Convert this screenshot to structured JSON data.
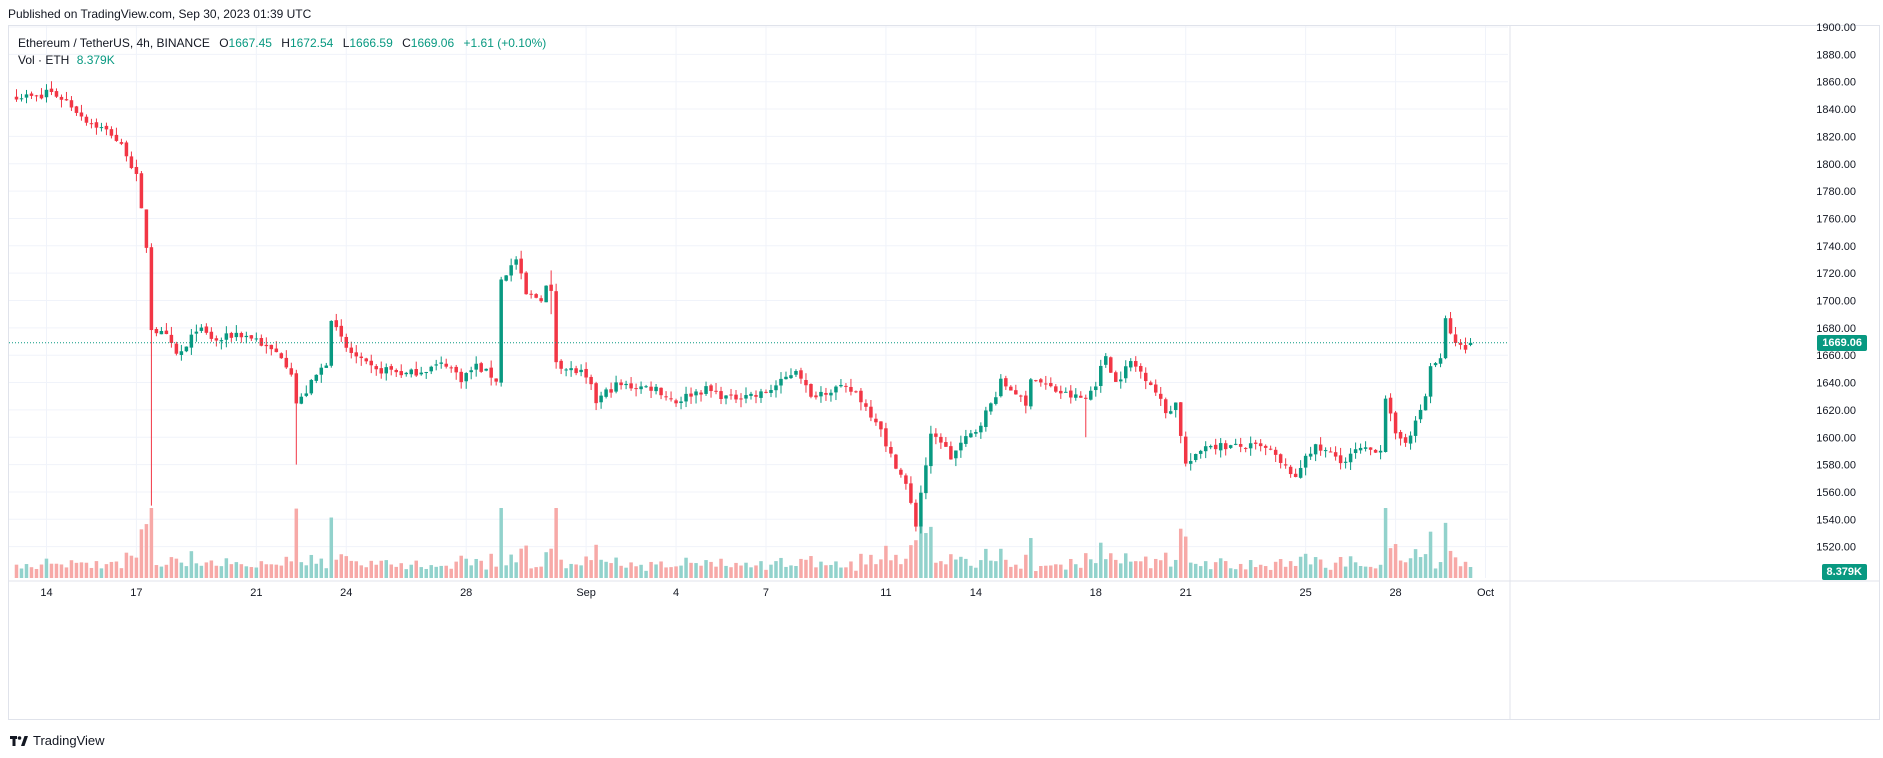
{
  "published": "Published on TradingView.com, Sep 30, 2023 01:39 UTC",
  "legend": {
    "symbol": "Ethereum / TetherUS, 4h, BINANCE",
    "open_label": "O",
    "open": "1667.45",
    "high_label": "H",
    "high": "1672.54",
    "low_label": "L",
    "low": "1666.59",
    "close_label": "C",
    "close": "1669.06",
    "change": "+1.61 (+0.10%)",
    "vol_label": "Vol · ETH",
    "vol_value": "8.379K"
  },
  "price_tag": "1669.06",
  "vol_tag": "8.379K",
  "brand": "TradingView",
  "colors": {
    "up": "#089981",
    "down": "#f23645",
    "vol_up": "#92d2cc",
    "vol_down": "#f7a9a7",
    "grid": "#f0f3fa"
  },
  "chart_data": {
    "type": "candlestick",
    "symbol": "Ethereum / TetherUS",
    "interval": "4h",
    "exchange": "BINANCE",
    "y_ticks": [
      1520,
      1540,
      1560,
      1580,
      1600,
      1620,
      1640,
      1660,
      1680,
      1700,
      1720,
      1740,
      1760,
      1780,
      1800,
      1820,
      1840,
      1860,
      1880,
      1900
    ],
    "y_tick_labels": [
      "1520.00",
      "1540.00",
      "1560.00",
      "1580.00",
      "1600.00",
      "1620.00",
      "1640.00",
      "1660.00",
      "1680.00",
      "1700.00",
      "1720.00",
      "1740.00",
      "1760.00",
      "1780.00",
      "1800.00",
      "1820.00",
      "1840.00",
      "1860.00",
      "1880.00",
      "1900.00"
    ],
    "ylim": [
      1500,
      1900
    ],
    "x_ticks": [
      {
        "label": "14",
        "x": 6.0
      },
      {
        "label": "17",
        "x": 24.0
      },
      {
        "label": "21",
        "x": 48.0
      },
      {
        "label": "24",
        "x": 66.0
      },
      {
        "label": "28",
        "x": 90.0
      },
      {
        "label": "Sep",
        "x": 114.0
      },
      {
        "label": "4",
        "x": 132.0
      },
      {
        "label": "7",
        "x": 150.0
      },
      {
        "label": "11",
        "x": 174.0
      },
      {
        "label": "14",
        "x": 192.0
      },
      {
        "label": "18",
        "x": 216.0
      },
      {
        "label": "21",
        "x": 234.0
      },
      {
        "label": "25",
        "x": 258.0
      },
      {
        "label": "28",
        "x": 276.0
      },
      {
        "label": "Oct",
        "x": 294.0
      }
    ],
    "xlim": [
      -1.5,
      298.5
    ],
    "last_price": 1669.06,
    "anchors": [
      [
        0,
        1850
      ],
      [
        5,
        1848
      ],
      [
        6,
        1854
      ],
      [
        10,
        1846
      ],
      [
        14,
        1832
      ],
      [
        19,
        1822
      ],
      [
        22,
        1808
      ],
      [
        24,
        1790
      ],
      [
        26,
        1740
      ],
      [
        27,
        1680
      ],
      [
        30,
        1673
      ],
      [
        32,
        1660
      ],
      [
        34,
        1665
      ],
      [
        36,
        1680
      ],
      [
        40,
        1670
      ],
      [
        44,
        1676
      ],
      [
        48,
        1672
      ],
      [
        50,
        1665
      ],
      [
        53,
        1660
      ],
      [
        55,
        1648
      ],
      [
        56,
        1625
      ],
      [
        57,
        1628
      ],
      [
        60,
        1645
      ],
      [
        62,
        1655
      ],
      [
        63,
        1688
      ],
      [
        64,
        1678
      ],
      [
        66,
        1665
      ],
      [
        69,
        1655
      ],
      [
        72,
        1648
      ],
      [
        74,
        1650
      ],
      [
        78,
        1646
      ],
      [
        82,
        1650
      ],
      [
        86,
        1654
      ],
      [
        89,
        1643
      ],
      [
        92,
        1652
      ],
      [
        95,
        1645
      ],
      [
        96,
        1642
      ],
      [
        97,
        1715
      ],
      [
        100,
        1730
      ],
      [
        102,
        1704
      ],
      [
        105,
        1702
      ],
      [
        106,
        1710
      ],
      [
        107,
        1705
      ],
      [
        108,
        1656
      ],
      [
        110,
        1650
      ],
      [
        113,
        1647
      ],
      [
        115,
        1636
      ],
      [
        116,
        1626
      ],
      [
        118,
        1633
      ],
      [
        120,
        1638
      ],
      [
        124,
        1637
      ],
      [
        128,
        1636
      ],
      [
        130,
        1630
      ],
      [
        132,
        1626
      ],
      [
        135,
        1632
      ],
      [
        138,
        1635
      ],
      [
        143,
        1628
      ],
      [
        146,
        1632
      ],
      [
        148,
        1630
      ],
      [
        150,
        1633
      ],
      [
        153,
        1640
      ],
      [
        156,
        1650
      ],
      [
        157,
        1645
      ],
      [
        159,
        1628
      ],
      [
        160,
        1632
      ],
      [
        164,
        1636
      ],
      [
        168,
        1633
      ],
      [
        170,
        1622
      ],
      [
        173,
        1608
      ],
      [
        174,
        1592
      ],
      [
        176,
        1580
      ],
      [
        178,
        1565
      ],
      [
        180,
        1536
      ],
      [
        181,
        1560
      ],
      [
        183,
        1600
      ],
      [
        185,
        1598
      ],
      [
        187,
        1585
      ],
      [
        189,
        1595
      ],
      [
        192,
        1605
      ],
      [
        195,
        1624
      ],
      [
        197,
        1640
      ],
      [
        200,
        1633
      ],
      [
        202,
        1622
      ],
      [
        203,
        1645
      ],
      [
        205,
        1640
      ],
      [
        208,
        1634
      ],
      [
        211,
        1630
      ],
      [
        214,
        1628
      ],
      [
        216,
        1640
      ],
      [
        218,
        1660
      ],
      [
        220,
        1640
      ],
      [
        223,
        1655
      ],
      [
        225,
        1648
      ],
      [
        227,
        1640
      ],
      [
        229,
        1626
      ],
      [
        230,
        1618
      ],
      [
        232,
        1625
      ],
      [
        234,
        1580
      ],
      [
        236,
        1585
      ],
      [
        238,
        1595
      ],
      [
        240,
        1594
      ],
      [
        244,
        1593
      ],
      [
        248,
        1593
      ],
      [
        251,
        1590
      ],
      [
        253,
        1580
      ],
      [
        255,
        1575
      ],
      [
        256,
        1568
      ],
      [
        258,
        1588
      ],
      [
        260,
        1592
      ],
      [
        263,
        1588
      ],
      [
        266,
        1582
      ],
      [
        268,
        1590
      ],
      [
        270,
        1590
      ],
      [
        273,
        1592
      ],
      [
        274,
        1630
      ],
      [
        276,
        1600
      ],
      [
        278,
        1598
      ],
      [
        280,
        1610
      ],
      [
        282,
        1630
      ],
      [
        283,
        1652
      ],
      [
        285,
        1656
      ],
      [
        286,
        1686
      ],
      [
        288,
        1667
      ],
      [
        290,
        1667
      ],
      [
        291,
        1669.06
      ]
    ],
    "spikes": [
      [
        27,
        1675,
        1550
      ],
      [
        107,
        1722,
        1690
      ],
      [
        56,
        1603,
        1580
      ],
      [
        153,
        1638,
        1670
      ],
      [
        214,
        1628,
        1600
      ]
    ],
    "volume_ylim": [
      0,
      60
    ],
    "notes_from_chart": "Ethereum / TetherUS 4h candles, O 1667.45 H 1672.54 L 1666.59 C 1669.06 +1.61 (+0.10%), Vol 8.379K"
  }
}
